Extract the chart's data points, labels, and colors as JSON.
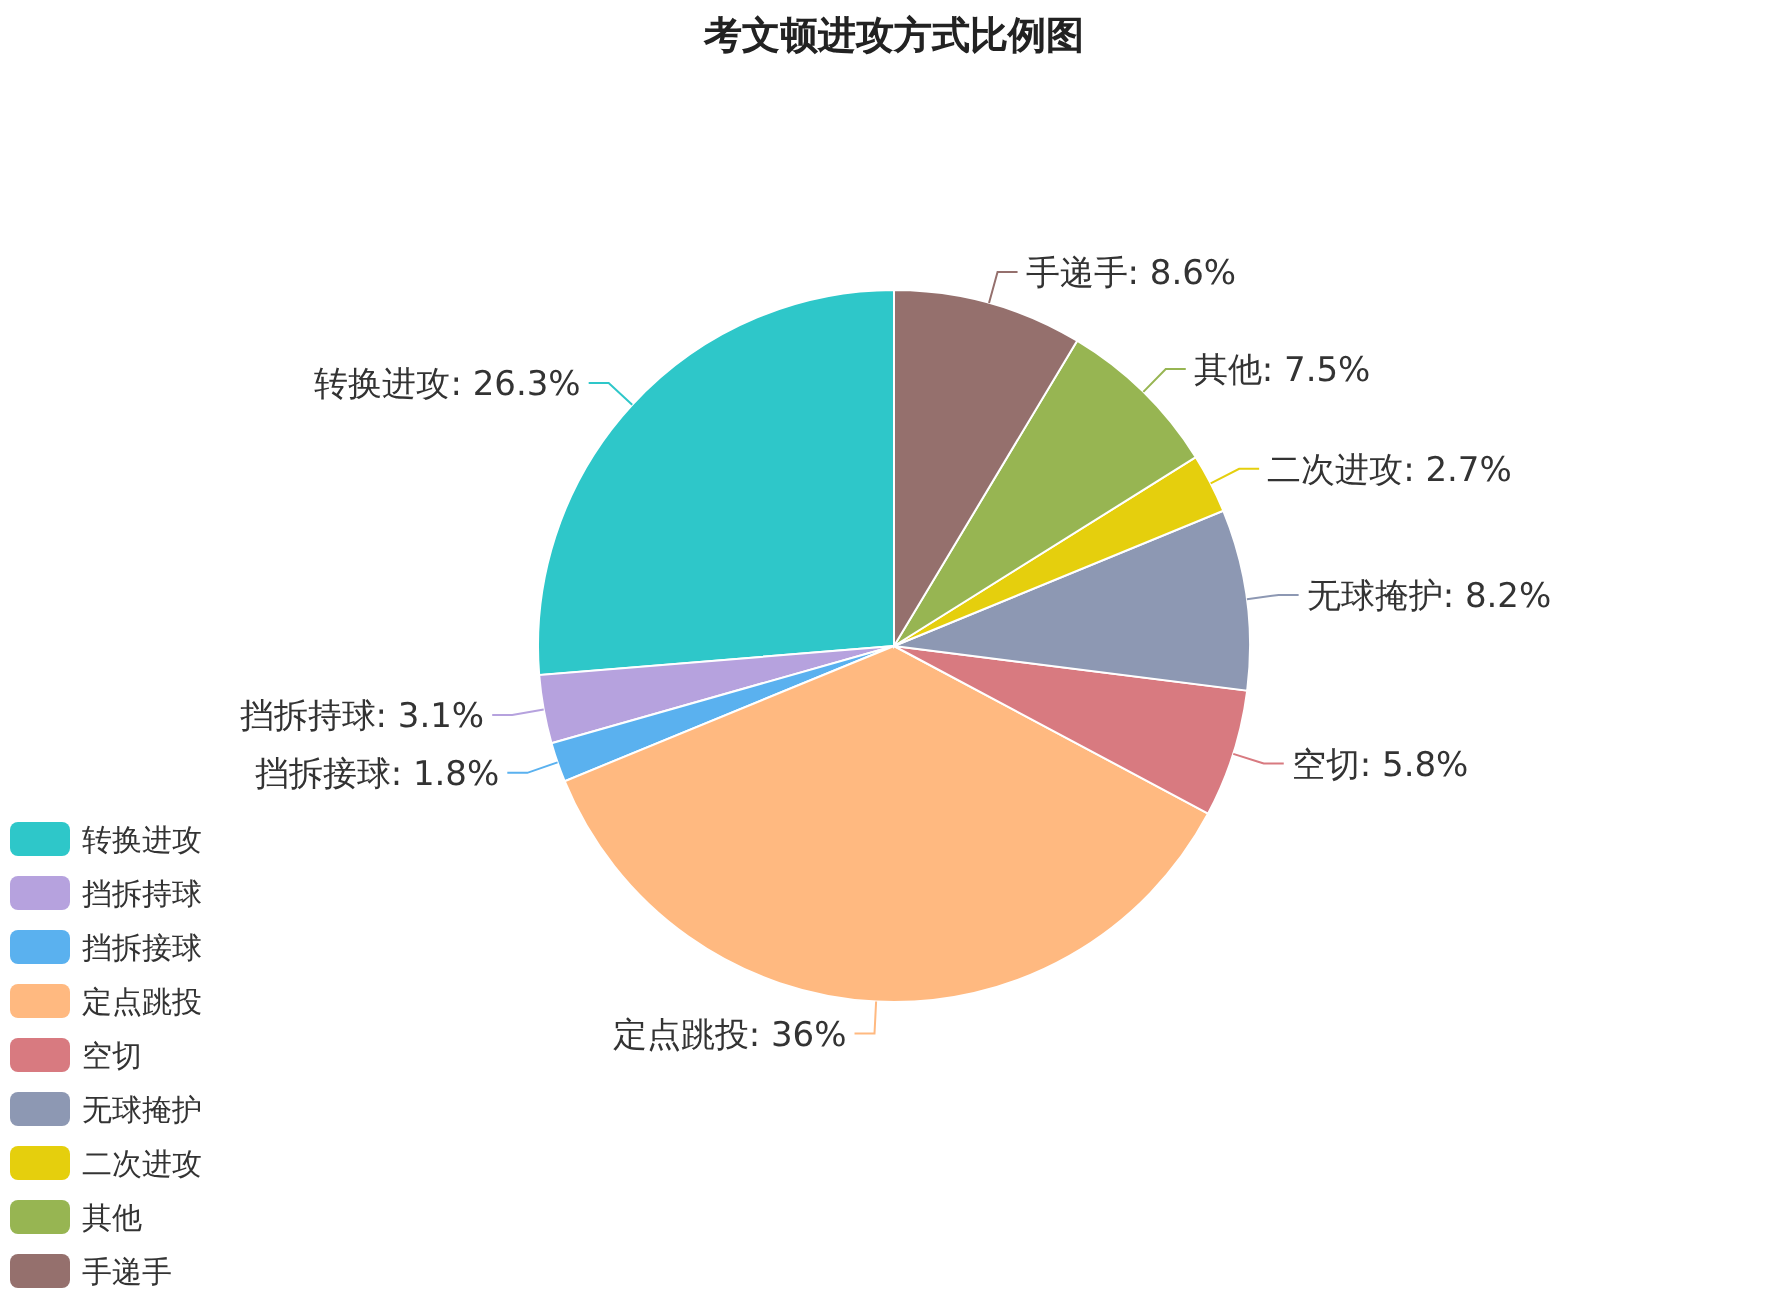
{
  "chart_data": {
    "type": "pie",
    "title": "考文顿进攻方式比例图",
    "categories": [
      "转换进攻",
      "挡拆持球",
      "挡拆接球",
      "定点跳投",
      "空切",
      "无球掩护",
      "二次进攻",
      "其他",
      "手递手"
    ],
    "values": [
      26.3,
      3.1,
      1.8,
      36,
      5.8,
      8.2,
      2.7,
      7.5,
      8.6
    ],
    "colors": [
      "#2ec7c9",
      "#b6a2de",
      "#5ab1ef",
      "#ffb980",
      "#d87a80",
      "#8d98b3",
      "#e5cf0d",
      "#97b552",
      "#95706d"
    ],
    "value_labels": [
      "转换进攻: 26.3%",
      "挡拆持球: 3.1%",
      "挡拆接球: 1.8%",
      "定点跳投: 36%",
      "空切: 5.8%",
      "无球掩护: 8.2%",
      "二次进攻: 2.7%",
      "其他: 7.5%",
      "手递手: 8.6%"
    ],
    "legend": "bottom left"
  }
}
